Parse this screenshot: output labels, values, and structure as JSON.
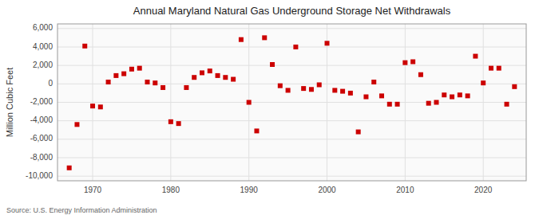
{
  "chart_data": {
    "type": "scatter",
    "title": "Annual Maryland Natural Gas Underground Storage Net Withdrawals",
    "y_label": "Million Cubic Feet",
    "annotations": [
      "Source: U.S. Energy Information Administration"
    ],
    "x": [
      1967,
      1968,
      1969,
      1970,
      1971,
      1972,
      1973,
      1974,
      1975,
      1976,
      1977,
      1978,
      1979,
      1980,
      1981,
      1982,
      1983,
      1984,
      1985,
      1986,
      1987,
      1988,
      1989,
      1990,
      1991,
      1992,
      1993,
      1994,
      1995,
      1996,
      1997,
      1998,
      1999,
      2000,
      2001,
      2002,
      2003,
      2004,
      2005,
      2006,
      2007,
      2008,
      2009,
      2010,
      2011,
      2012,
      2013,
      2014,
      2015,
      2016,
      2017,
      2018,
      2019,
      2020,
      2021,
      2022,
      2023,
      2024
    ],
    "values": [
      -9100,
      -4400,
      4100,
      -2400,
      -2500,
      200,
      900,
      1100,
      1600,
      1700,
      200,
      100,
      -400,
      -4100,
      -4300,
      -400,
      700,
      1200,
      1400,
      900,
      700,
      500,
      4800,
      -2000,
      -5100,
      5000,
      2100,
      -200,
      -700,
      4000,
      -500,
      -600,
      -100,
      4400,
      -700,
      -800,
      -1000,
      -5200,
      -1400,
      200,
      -1300,
      -2200,
      -2200,
      2300,
      2400,
      1000,
      -2100,
      -2000,
      -1200,
      -1400,
      -1200,
      -1300,
      3000,
      100,
      1700,
      1700,
      -2200,
      -300
    ],
    "color": "#cc0000",
    "marker": "square",
    "xlim": [
      1965.5,
      2025.5
    ],
    "xticks": [
      1970,
      1980,
      1990,
      2000,
      2010,
      2020
    ],
    "ylim": [
      -10500,
      6500
    ],
    "yticks": [
      {
        "value": -10000,
        "label": "-10,000"
      },
      {
        "value": -8000,
        "label": "-8,000"
      },
      {
        "value": -6000,
        "label": "-6,000"
      },
      {
        "value": -4000,
        "label": "-4,000"
      },
      {
        "value": -2000,
        "label": "-2,000"
      },
      0,
      {
        "value": 2000,
        "label": "2,000"
      },
      {
        "value": 4000,
        "label": "4,000"
      },
      {
        "value": 6000,
        "label": "6,000"
      }
    ],
    "grid": true
  }
}
